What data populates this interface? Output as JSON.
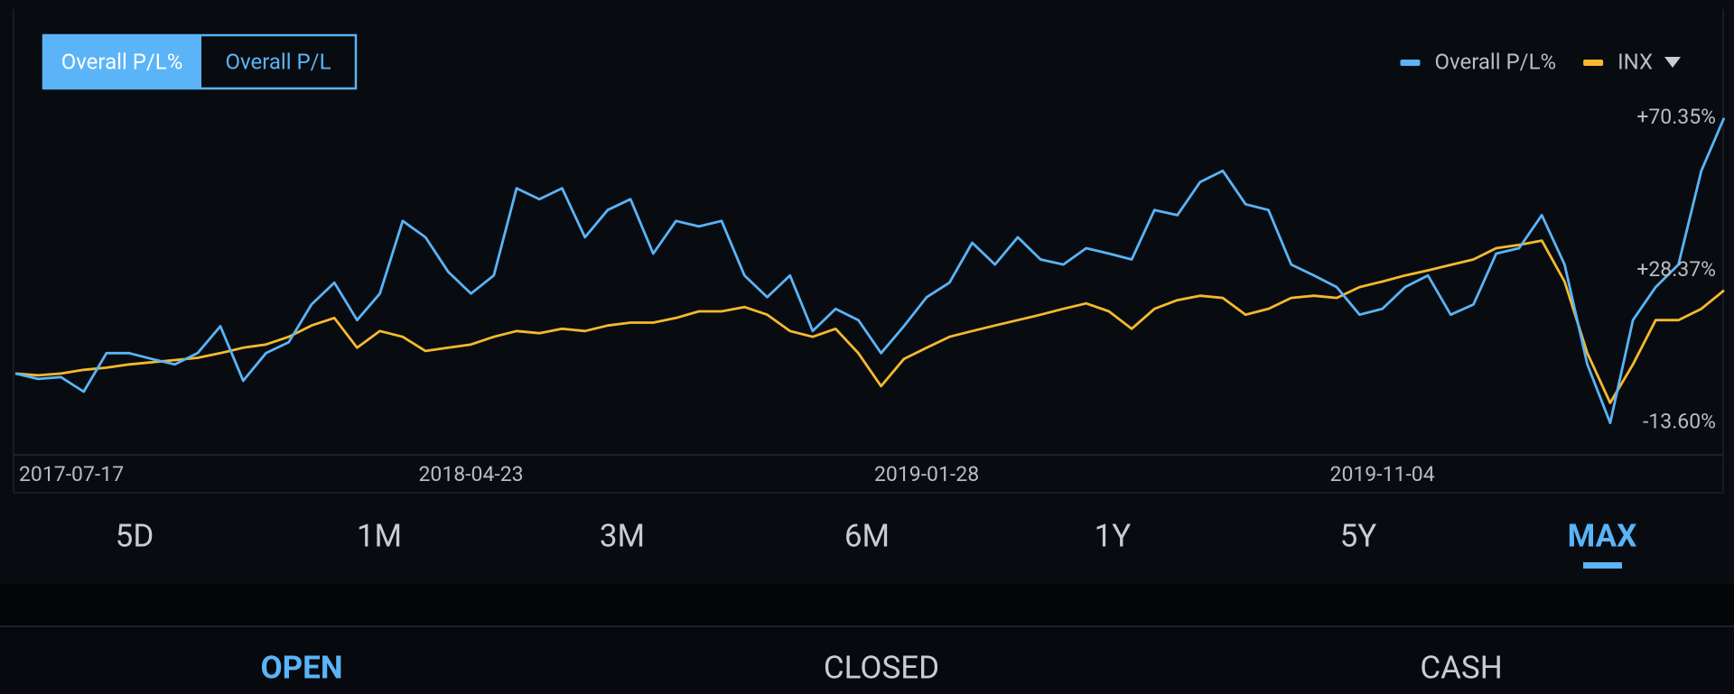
{
  "toggle": {
    "options": [
      "Overall P/L%",
      "Overall P/L"
    ]
  },
  "chart_data": {
    "type": "line",
    "legend": "top-right",
    "categories": [
      "2017-07-17",
      null,
      null,
      null,
      null,
      null,
      null,
      null,
      null,
      null,
      null,
      null,
      null,
      null,
      null,
      null,
      null,
      null,
      null,
      null,
      "2018-04-23",
      null,
      null,
      null,
      null,
      null,
      null,
      null,
      null,
      null,
      null,
      null,
      null,
      null,
      null,
      null,
      null,
      null,
      null,
      null,
      "2019-01-28",
      null,
      null,
      null,
      null,
      null,
      null,
      null,
      null,
      null,
      null,
      null,
      null,
      null,
      null,
      null,
      null,
      null,
      null,
      null,
      "2019-11-04",
      null,
      null,
      null,
      null,
      null,
      null,
      null,
      null,
      null,
      null,
      null,
      null,
      null,
      null,
      null
    ],
    "series": [
      {
        "name": "Overall P/L%",
        "color": "#5ab4f7",
        "values": [
          0,
          -1.5,
          -1,
          -5,
          5.6,
          5.6,
          4,
          2.5,
          5.6,
          13,
          -2,
          5.6,
          8.6,
          19,
          25,
          14.7,
          22,
          42,
          37.5,
          28,
          22,
          27,
          51,
          48,
          51,
          37.5,
          45,
          48,
          33,
          42,
          40.5,
          42,
          27,
          21,
          27,
          11.7,
          17.8,
          14.7,
          5.6,
          13,
          21,
          25,
          36,
          30,
          37.5,
          31.4,
          30,
          34.5,
          33,
          31.4,
          45,
          43.6,
          52.7,
          55.8,
          46.6,
          45,
          30,
          27,
          23.8,
          16.2,
          17.8,
          23.8,
          27,
          16.2,
          19,
          33,
          34.5,
          43.6,
          30,
          2.5,
          -13.6,
          14.7,
          23.8,
          30,
          55.8,
          70.35
        ]
      },
      {
        "name": "INX",
        "color": "#f5b92e",
        "values": [
          0,
          -0.5,
          0,
          1,
          1.6,
          2.5,
          3.1,
          3.7,
          4.3,
          5.6,
          7.1,
          8,
          10.1,
          13.2,
          15.3,
          7.1,
          11.7,
          10.1,
          6.2,
          7.1,
          8,
          10.1,
          11.7,
          11.1,
          12.3,
          11.7,
          13.2,
          14,
          14,
          15.3,
          17.1,
          17.1,
          18.3,
          16.2,
          11.7,
          10.1,
          12.3,
          5.6,
          -3.5,
          4,
          7.1,
          10.1,
          11.7,
          13.2,
          14.7,
          16.2,
          17.8,
          19.3,
          17.1,
          12.3,
          17.8,
          20.2,
          21.4,
          20.8,
          16.2,
          17.8,
          20.8,
          21.4,
          20.8,
          23.8,
          25.3,
          27,
          28.4,
          29.9,
          31.4,
          34.5,
          35.4,
          36.6,
          25.3,
          5.6,
          -8.1,
          2.5,
          14.7,
          14.7,
          17.8,
          22.9
        ]
      }
    ],
    "ylim": [
      -22.4,
      75.5
    ],
    "yticks": [
      {
        "value": 70.35,
        "label": "+70.35%"
      },
      {
        "value": 28.37,
        "label": "+28.37%"
      },
      {
        "value": -13.6,
        "label": "-13.60%"
      }
    ]
  },
  "periods": [
    "5D",
    "1M",
    "3M",
    "6M",
    "1Y",
    "5Y",
    "MAX"
  ],
  "tabs": [
    "OPEN",
    "CLOSED",
    "CASH"
  ]
}
